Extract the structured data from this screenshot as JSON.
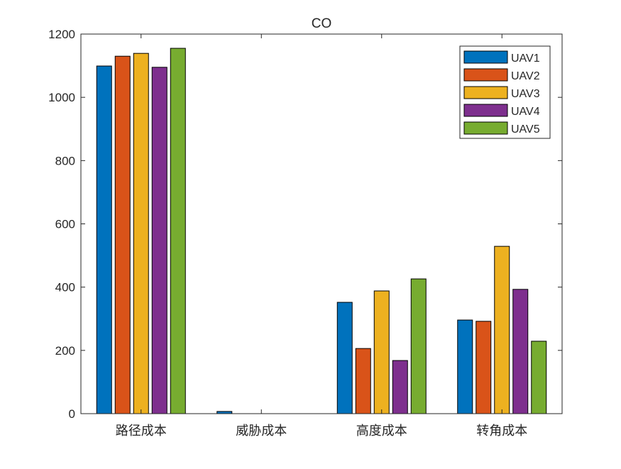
{
  "chart_data": {
    "type": "bar",
    "title": "CO",
    "xlabel": "",
    "ylabel": "",
    "categories": [
      "路径成本",
      "威胁成本",
      "高度成本",
      "转角成本"
    ],
    "ylim": [
      0,
      1200
    ],
    "yticks": [
      0,
      200,
      400,
      600,
      800,
      1000,
      1200
    ],
    "grid": false,
    "legend_position": "top-right",
    "series": [
      {
        "name": "UAV1",
        "color": "#0072BD",
        "values": [
          1099,
          7,
          352,
          296
        ]
      },
      {
        "name": "UAV2",
        "color": "#D95319",
        "values": [
          1130,
          0,
          206,
          292
        ]
      },
      {
        "name": "UAV3",
        "color": "#EDB120",
        "values": [
          1139,
          0,
          388,
          529
        ]
      },
      {
        "name": "UAV4",
        "color": "#7E2F8E",
        "values": [
          1095,
          0,
          168,
          393
        ]
      },
      {
        "name": "UAV5",
        "color": "#77AC30",
        "values": [
          1155,
          0,
          426,
          229
        ]
      }
    ]
  }
}
